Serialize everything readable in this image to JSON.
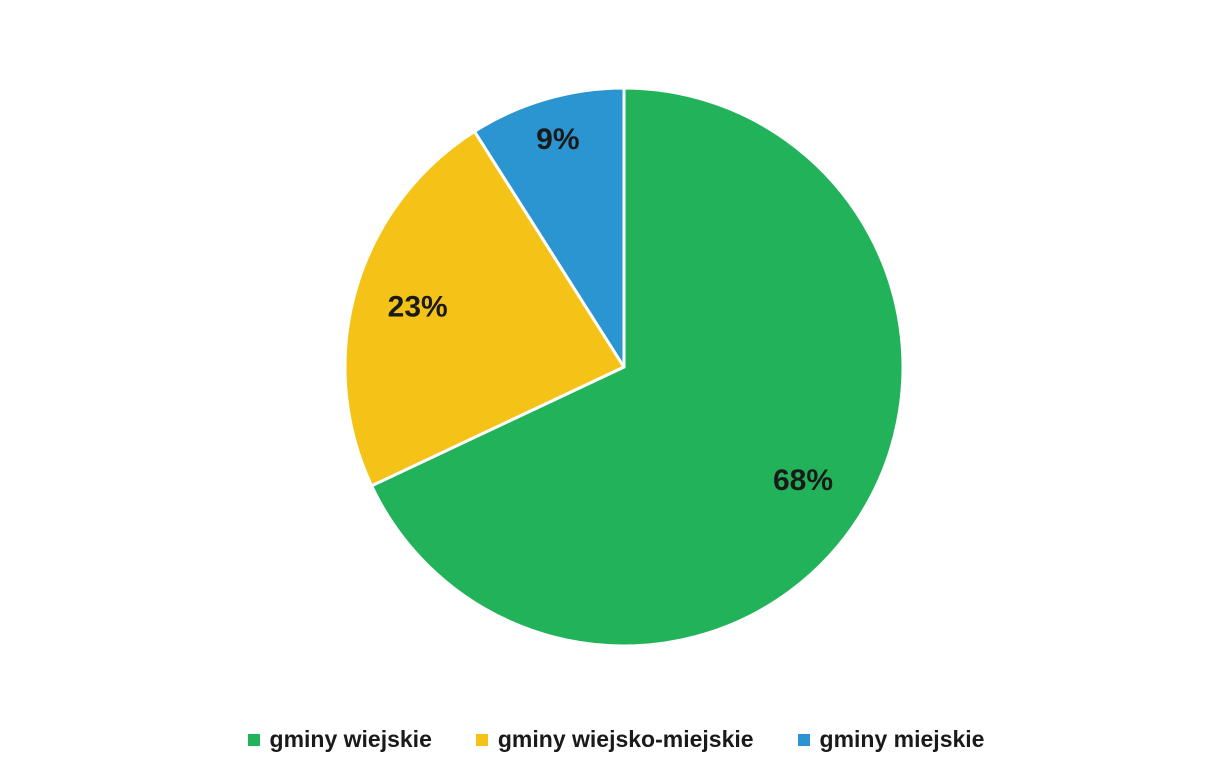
{
  "chart_data": {
    "type": "pie",
    "title": "",
    "slices": [
      {
        "label": "gminy wiejskie",
        "value": 68,
        "display": "68%",
        "color": "#22b35a"
      },
      {
        "label": "gminy wiejsko-miejskie",
        "value": 23,
        "display": "23%",
        "color": "#f5c318"
      },
      {
        "label": "gminy miejskie",
        "value": 9,
        "display": "9%",
        "color": "#2a95d1"
      }
    ],
    "legend_position": "bottom"
  }
}
